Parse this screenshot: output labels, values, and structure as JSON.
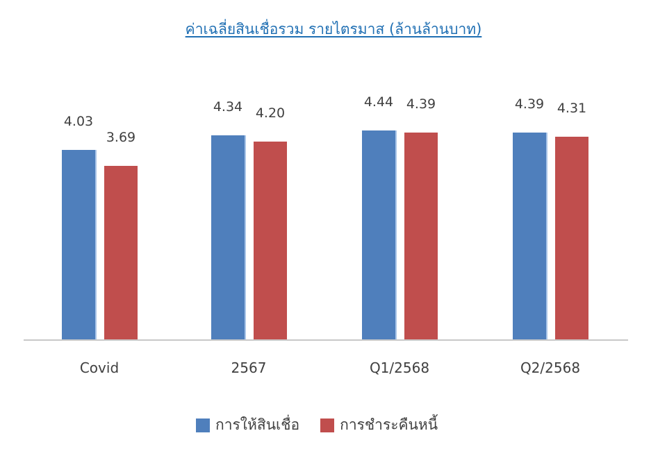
{
  "chart_data": {
    "type": "bar",
    "title": "ค่าเฉลี่ยสินเชื่อรวม รายไตรมาส (ล้านล้านบาท)",
    "categories": [
      "Covid",
      "2567",
      "Q1/2568",
      "Q2/2568"
    ],
    "series": [
      {
        "name": "การให้สินเชื่อ",
        "color": "#4f7fbc",
        "values": [
          4.03,
          4.34,
          4.44,
          4.39
        ],
        "labels": [
          "4.03",
          "4.34",
          "4.44",
          "4.39"
        ]
      },
      {
        "name": "การชำระคืนหนี้",
        "color": "#c04e4d",
        "values": [
          3.69,
          4.2,
          4.39,
          4.31
        ],
        "labels": [
          "3.69",
          "4.20",
          "4.39",
          "4.31"
        ]
      }
    ],
    "xlabel": "",
    "ylabel": "",
    "grid": false,
    "legend_position": "bottom"
  }
}
